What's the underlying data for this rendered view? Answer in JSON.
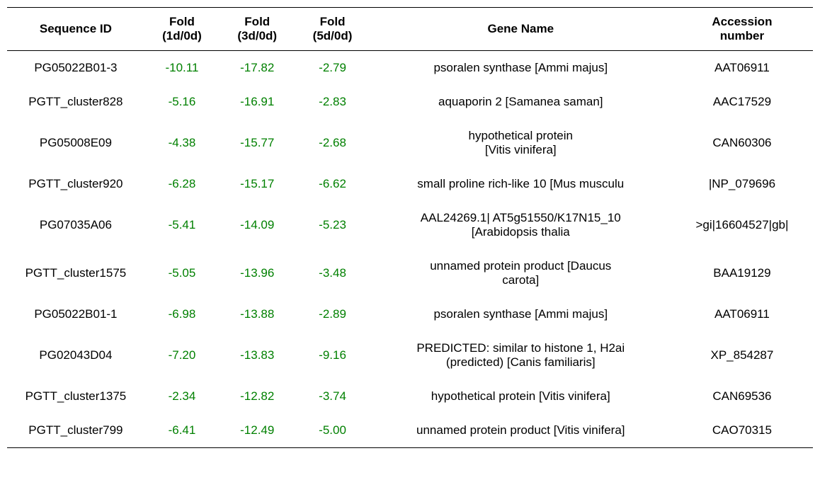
{
  "table": {
    "headers": {
      "sequence_id": "Sequence ID",
      "fold_header": "Fold",
      "fold1": "(1d/0d)",
      "fold3": "(3d/0d)",
      "fold5": "(5d/0d)",
      "gene_name": "Gene Name",
      "accession_header": "Accession",
      "accession_sub": "number"
    },
    "rows": [
      {
        "sequence_id": "PG05022B01-3",
        "fold1": "-10.11",
        "fold3": "-17.82",
        "fold5": "-2.79",
        "gene_name": "psoralen synthase [Ammi majus]",
        "accession": "AAT06911"
      },
      {
        "sequence_id": "PGTT_cluster828",
        "fold1": "-5.16",
        "fold3": "-16.91",
        "fold5": "-2.83",
        "gene_name": "aquaporin 2 [Samanea saman]",
        "accession": "AAC17529"
      },
      {
        "sequence_id": "PG05008E09",
        "fold1": "-4.38",
        "fold3": "-15.77",
        "fold5": "-2.68",
        "gene_name": "hypothetical protein\n[Vitis vinifera]",
        "accession": "CAN60306"
      },
      {
        "sequence_id": "PGTT_cluster920",
        "fold1": "-6.28",
        "fold3": "-15.17",
        "fold5": "-6.62",
        "gene_name": "small proline rich-like 10 [Mus musculu",
        "accession": "|NP_079696"
      },
      {
        "sequence_id": "PG07035A06",
        "fold1": "-5.41",
        "fold3": "-14.09",
        "fold5": "-5.23",
        "gene_name": "AAL24269.1| AT5g51550/K17N15_10\n[Arabidopsis thalia",
        "accession": ">gi|16604527|gb|"
      },
      {
        "sequence_id": "PGTT_cluster1575",
        "fold1": "-5.05",
        "fold3": "-13.96",
        "fold5": "-3.48",
        "gene_name": "unnamed protein product [Daucus\ncarota]",
        "accession": "BAA19129"
      },
      {
        "sequence_id": "PG05022B01-1",
        "fold1": "-6.98",
        "fold3": "-13.88",
        "fold5": "-2.89",
        "gene_name": "psoralen synthase [Ammi majus]",
        "accession": "AAT06911"
      },
      {
        "sequence_id": "PG02043D04",
        "fold1": "-7.20",
        "fold3": "-13.83",
        "fold5": "-9.16",
        "gene_name": "PREDICTED: similar to histone 1, H2ai\n(predicted) [Canis familiaris]",
        "accession": "XP_854287"
      },
      {
        "sequence_id": "PGTT_cluster1375",
        "fold1": "-2.34",
        "fold3": "-12.82",
        "fold5": "-3.74",
        "gene_name": "hypothetical protein [Vitis vinifera]",
        "accession": "CAN69536"
      },
      {
        "sequence_id": "PGTT_cluster799",
        "fold1": "-6.41",
        "fold3": "-12.49",
        "fold5": "-5.00",
        "gene_name": "unnamed protein product [Vitis vinifera]",
        "accession": "CAO70315"
      }
    ],
    "styling": {
      "fold_color": "#008000",
      "text_color": "#000000",
      "border_color": "#000000",
      "background_color": "#ffffff",
      "header_font_size": 17,
      "cell_font_size": 17,
      "font_family": "Arial"
    }
  }
}
